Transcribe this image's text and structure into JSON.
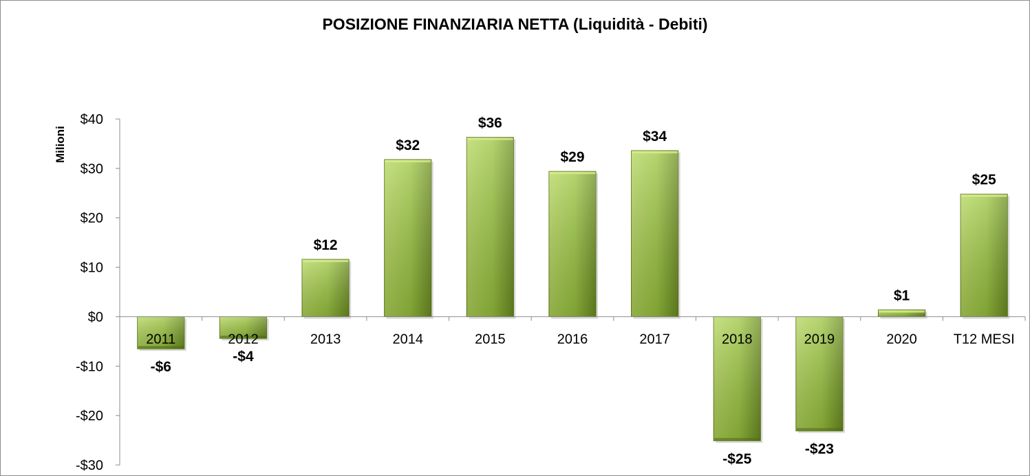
{
  "chart_data": {
    "type": "bar",
    "title": "POSIZIONE FINANZIARIA NETTA (Liquidità - Debiti)",
    "ylabel": "Milioni",
    "xlabel": "",
    "categories": [
      "2011",
      "2012",
      "2013",
      "2014",
      "2015",
      "2016",
      "2017",
      "2018",
      "2019",
      "2020",
      "T12 MESI"
    ],
    "values": [
      -6.5,
      -4.4,
      11.6,
      31.8,
      36.3,
      29.4,
      33.6,
      -25.1,
      -23.1,
      1.4,
      24.8
    ],
    "data_labels": [
      "-$6",
      "-$4",
      "$12",
      "$32",
      "$36",
      "$29",
      "$34",
      "-$25",
      "-$23",
      "$1",
      "$25"
    ],
    "ylim": [
      -30,
      40
    ],
    "yticks": [
      -30,
      -20,
      -10,
      0,
      10,
      20,
      30,
      40
    ],
    "ytick_labels": [
      "-$30",
      "-$20",
      "-$10",
      "$0",
      "$10",
      "$20",
      "$30",
      "$40"
    ],
    "grid": false,
    "legend": "none",
    "colors": {
      "bar_light": "#b3d65a",
      "bar_mid": "#9cc63f",
      "bar_dark": "#6d8f22",
      "bar_border": "#5e7a1c",
      "axis": "#8c8c8c"
    }
  }
}
